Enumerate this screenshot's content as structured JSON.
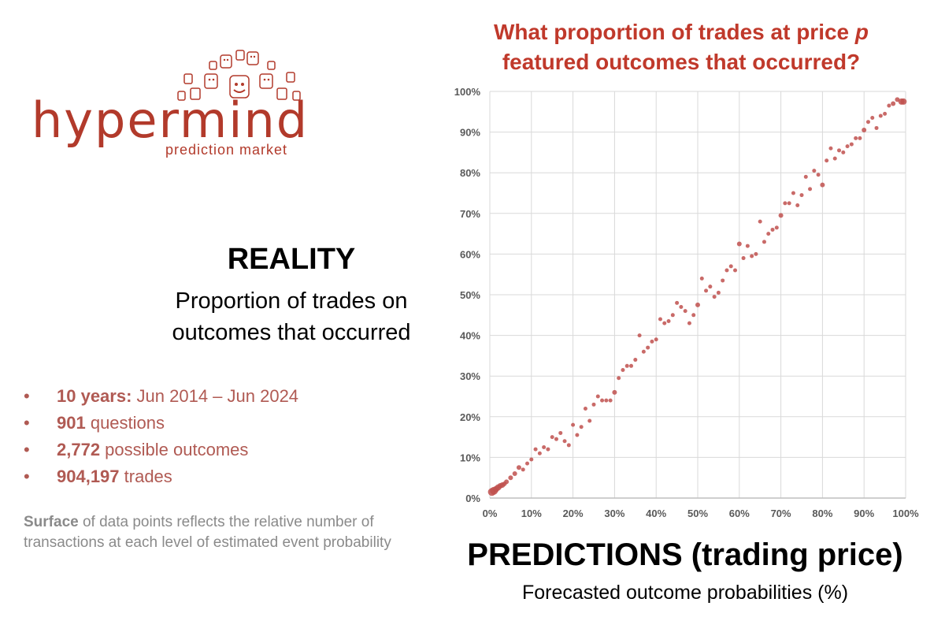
{
  "logo": {
    "word": "hypermind",
    "sub": "prediction market"
  },
  "left": {
    "title": "REALITY",
    "subtitle_line1": "Proportion of trades on",
    "subtitle_line2": "outcomes that occurred",
    "stats": [
      {
        "bold": "10 years:",
        "text": " Jun 2014 – Jun 2024"
      },
      {
        "bold": "901",
        "text": " questions"
      },
      {
        "bold": "2,772",
        "text": " possible outcomes"
      },
      {
        "bold": "904,197",
        "text": " trades"
      }
    ],
    "note_bold": "Surface",
    "note_text": " of data points reflects the relative number of transactions at each level of estimated event probability"
  },
  "chart_data": {
    "type": "scatter",
    "title_line1": "What proportion of trades at price p",
    "title_line2": "featured outcomes that occurred?",
    "xlabel": "PREDICTIONS (trading price)",
    "xsub": "Forecasted outcome probabilities (%)",
    "ylabel": "REALITY",
    "xlim": [
      0,
      100
    ],
    "ylim": [
      0,
      100
    ],
    "xticks": [
      "0%",
      "10%",
      "20%",
      "30%",
      "40%",
      "50%",
      "60%",
      "70%",
      "80%",
      "90%",
      "100%"
    ],
    "yticks": [
      "0%",
      "10%",
      "20%",
      "30%",
      "40%",
      "50%",
      "60%",
      "70%",
      "80%",
      "90%",
      "100%"
    ],
    "grid": true,
    "color": "#c0504d",
    "points": [
      {
        "x": 0.5,
        "y": 1.5,
        "s": 5
      },
      {
        "x": 1,
        "y": 1.8,
        "s": 5
      },
      {
        "x": 1.5,
        "y": 2.2,
        "s": 4
      },
      {
        "x": 2,
        "y": 2.6,
        "s": 4
      },
      {
        "x": 2.5,
        "y": 3,
        "s": 3.5
      },
      {
        "x": 3,
        "y": 3.2,
        "s": 3.5
      },
      {
        "x": 3.5,
        "y": 3.5,
        "s": 3
      },
      {
        "x": 4,
        "y": 4,
        "s": 3
      },
      {
        "x": 5,
        "y": 5,
        "s": 3
      },
      {
        "x": 6,
        "y": 6,
        "s": 3
      },
      {
        "x": 7,
        "y": 7.5,
        "s": 3
      },
      {
        "x": 8,
        "y": 7,
        "s": 2.5
      },
      {
        "x": 9,
        "y": 8.5,
        "s": 2.5
      },
      {
        "x": 10,
        "y": 9.5,
        "s": 2.5
      },
      {
        "x": 11,
        "y": 12,
        "s": 2.5
      },
      {
        "x": 12,
        "y": 11,
        "s": 2.5
      },
      {
        "x": 13,
        "y": 12.5,
        "s": 2.5
      },
      {
        "x": 14,
        "y": 12,
        "s": 2.5
      },
      {
        "x": 15,
        "y": 15,
        "s": 2.5
      },
      {
        "x": 16,
        "y": 14.5,
        "s": 2.5
      },
      {
        "x": 17,
        "y": 16,
        "s": 2.5
      },
      {
        "x": 18,
        "y": 14,
        "s": 2.5
      },
      {
        "x": 19,
        "y": 13,
        "s": 2.5
      },
      {
        "x": 20,
        "y": 18,
        "s": 2.5
      },
      {
        "x": 21,
        "y": 15.5,
        "s": 2.5
      },
      {
        "x": 22,
        "y": 17.5,
        "s": 2.5
      },
      {
        "x": 23,
        "y": 22,
        "s": 2.5
      },
      {
        "x": 24,
        "y": 19,
        "s": 2.5
      },
      {
        "x": 25,
        "y": 23,
        "s": 2.5
      },
      {
        "x": 26,
        "y": 25,
        "s": 2.5
      },
      {
        "x": 27,
        "y": 24,
        "s": 2.5
      },
      {
        "x": 28,
        "y": 24,
        "s": 2.5
      },
      {
        "x": 29,
        "y": 24,
        "s": 2.5
      },
      {
        "x": 30,
        "y": 26,
        "s": 3
      },
      {
        "x": 31,
        "y": 29.5,
        "s": 2.5
      },
      {
        "x": 32,
        "y": 31.5,
        "s": 2.5
      },
      {
        "x": 33,
        "y": 32.5,
        "s": 2.5
      },
      {
        "x": 34,
        "y": 32.5,
        "s": 2.5
      },
      {
        "x": 35,
        "y": 34,
        "s": 2.5
      },
      {
        "x": 36,
        "y": 40,
        "s": 2.5
      },
      {
        "x": 37,
        "y": 36,
        "s": 2.5
      },
      {
        "x": 38,
        "y": 37,
        "s": 2.5
      },
      {
        "x": 39,
        "y": 38.5,
        "s": 2.5
      },
      {
        "x": 40,
        "y": 39,
        "s": 2.5
      },
      {
        "x": 41,
        "y": 44,
        "s": 2.5
      },
      {
        "x": 42,
        "y": 43,
        "s": 2.5
      },
      {
        "x": 43,
        "y": 43.5,
        "s": 2.5
      },
      {
        "x": 44,
        "y": 45,
        "s": 2.5
      },
      {
        "x": 45,
        "y": 48,
        "s": 2.5
      },
      {
        "x": 46,
        "y": 47,
        "s": 2.5
      },
      {
        "x": 47,
        "y": 46,
        "s": 2.5
      },
      {
        "x": 48,
        "y": 43,
        "s": 2.5
      },
      {
        "x": 49,
        "y": 45,
        "s": 2.5
      },
      {
        "x": 50,
        "y": 47.5,
        "s": 3
      },
      {
        "x": 51,
        "y": 54,
        "s": 2.5
      },
      {
        "x": 52,
        "y": 51,
        "s": 2.5
      },
      {
        "x": 53,
        "y": 52,
        "s": 2.5
      },
      {
        "x": 54,
        "y": 49.5,
        "s": 2.5
      },
      {
        "x": 55,
        "y": 50.5,
        "s": 2.5
      },
      {
        "x": 56,
        "y": 53.5,
        "s": 2.5
      },
      {
        "x": 57,
        "y": 56,
        "s": 2.5
      },
      {
        "x": 58,
        "y": 57,
        "s": 2.5
      },
      {
        "x": 59,
        "y": 56,
        "s": 2.5
      },
      {
        "x": 60,
        "y": 62.5,
        "s": 3
      },
      {
        "x": 61,
        "y": 59,
        "s": 2.5
      },
      {
        "x": 62,
        "y": 62,
        "s": 2.5
      },
      {
        "x": 63,
        "y": 59.5,
        "s": 2.5
      },
      {
        "x": 64,
        "y": 60,
        "s": 2.5
      },
      {
        "x": 65,
        "y": 68,
        "s": 2.5
      },
      {
        "x": 66,
        "y": 63,
        "s": 2.5
      },
      {
        "x": 67,
        "y": 65,
        "s": 2.5
      },
      {
        "x": 68,
        "y": 66,
        "s": 2.5
      },
      {
        "x": 69,
        "y": 66.5,
        "s": 2.5
      },
      {
        "x": 70,
        "y": 69.5,
        "s": 3
      },
      {
        "x": 71,
        "y": 72.5,
        "s": 2.5
      },
      {
        "x": 72,
        "y": 72.5,
        "s": 2.5
      },
      {
        "x": 73,
        "y": 75,
        "s": 2.5
      },
      {
        "x": 74,
        "y": 72,
        "s": 2.5
      },
      {
        "x": 75,
        "y": 74.5,
        "s": 2.5
      },
      {
        "x": 76,
        "y": 79,
        "s": 2.5
      },
      {
        "x": 77,
        "y": 76,
        "s": 2.5
      },
      {
        "x": 78,
        "y": 80.5,
        "s": 2.5
      },
      {
        "x": 79,
        "y": 79.5,
        "s": 2.5
      },
      {
        "x": 80,
        "y": 77,
        "s": 3
      },
      {
        "x": 81,
        "y": 83,
        "s": 2.5
      },
      {
        "x": 82,
        "y": 86,
        "s": 2.5
      },
      {
        "x": 83,
        "y": 83.5,
        "s": 2.5
      },
      {
        "x": 84,
        "y": 85.5,
        "s": 2.5
      },
      {
        "x": 85,
        "y": 85,
        "s": 2.5
      },
      {
        "x": 86,
        "y": 86.5,
        "s": 2.5
      },
      {
        "x": 87,
        "y": 87,
        "s": 2.5
      },
      {
        "x": 88,
        "y": 88.5,
        "s": 2.5
      },
      {
        "x": 89,
        "y": 88.5,
        "s": 2.5
      },
      {
        "x": 90,
        "y": 90.5,
        "s": 3
      },
      {
        "x": 91,
        "y": 92.5,
        "s": 2.5
      },
      {
        "x": 92,
        "y": 93.5,
        "s": 2.5
      },
      {
        "x": 93,
        "y": 91,
        "s": 2.5
      },
      {
        "x": 94,
        "y": 94,
        "s": 2.5
      },
      {
        "x": 95,
        "y": 94.5,
        "s": 2.5
      },
      {
        "x": 96,
        "y": 96.5,
        "s": 2.5
      },
      {
        "x": 97,
        "y": 97,
        "s": 3
      },
      {
        "x": 98,
        "y": 98,
        "s": 3
      },
      {
        "x": 99,
        "y": 97.5,
        "s": 4
      },
      {
        "x": 99.5,
        "y": 97.5,
        "s": 4
      }
    ]
  }
}
